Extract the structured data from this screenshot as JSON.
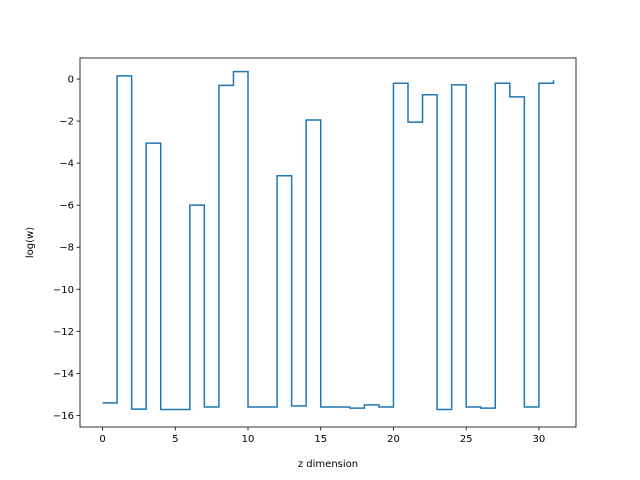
{
  "chart_data": {
    "type": "line",
    "step_style": "post",
    "xlabel": "z dimension",
    "ylabel": "log(w)",
    "xlim": [
      -1.55,
      32.55
    ],
    "ylim": [
      -16.55,
      1.0
    ],
    "xticks": [
      0,
      5,
      10,
      15,
      20,
      25,
      30
    ],
    "yticks": [
      -16,
      -14,
      -12,
      -10,
      -8,
      -6,
      -4,
      -2,
      0
    ],
    "grid": false,
    "legend": "none",
    "colors": {
      "line": "#1f77b4",
      "axes": "#000000",
      "background": "#ffffff"
    },
    "series": [
      {
        "x": [
          0,
          1,
          2,
          3,
          4,
          5,
          6,
          7,
          8,
          9,
          10,
          11,
          12,
          13,
          14,
          15,
          16,
          17,
          18,
          19,
          20,
          21,
          22,
          23,
          24,
          25,
          26,
          27,
          28,
          29,
          30,
          31
        ],
        "values": [
          -15.4,
          0.15,
          -15.7,
          -3.05,
          -15.72,
          -15.72,
          -6.0,
          -15.6,
          -0.3,
          0.35,
          -15.6,
          -15.6,
          -4.6,
          -15.55,
          -1.95,
          -15.6,
          -15.6,
          -15.65,
          -15.5,
          -15.6,
          -0.2,
          -2.05,
          -0.75,
          -15.72,
          -0.28,
          -15.6,
          -15.65,
          -0.2,
          -0.85,
          -15.6,
          -0.2,
          -0.05
        ]
      }
    ]
  }
}
